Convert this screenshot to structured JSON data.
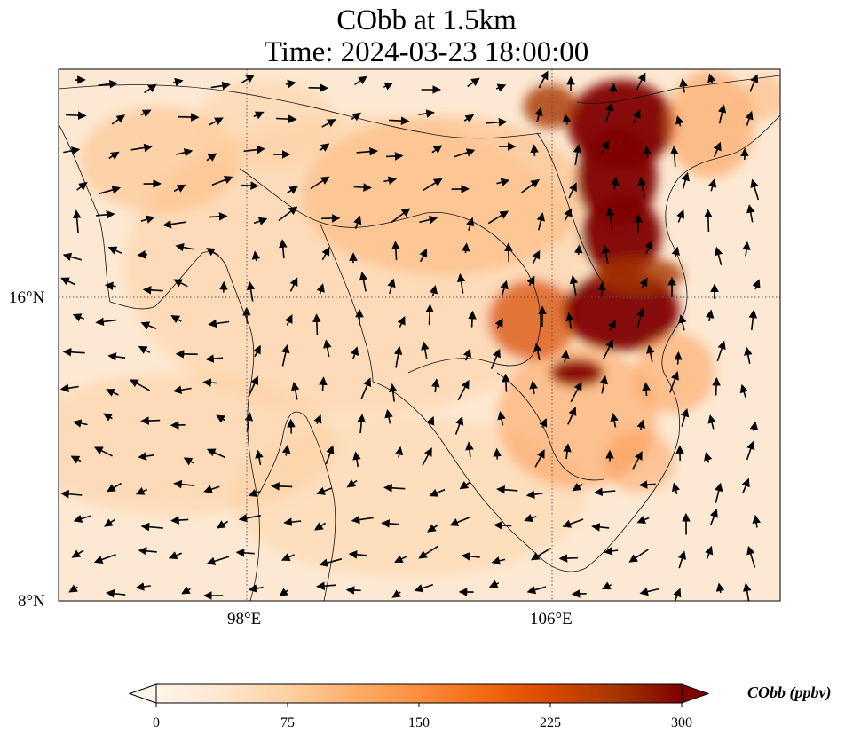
{
  "title": {
    "line1": "CObb at 1.5km",
    "line2": "Time: 2024-03-23 18:00:00"
  },
  "map": {
    "lon_ticks": [
      "98°E",
      "106°E"
    ],
    "lat_ticks": [
      "16°N",
      "8°N"
    ]
  },
  "colorbar": {
    "label": "CObb (ppbv)",
    "ticks": [
      "0",
      "75",
      "150",
      "225",
      "300"
    ],
    "min": 0,
    "max": 300,
    "extend": "both",
    "colormap": [
      "#fff5eb",
      "#fee6ce",
      "#fdd0a2",
      "#fdae6b",
      "#fd8d3c",
      "#f16913",
      "#d94801",
      "#a63603",
      "#7f0000"
    ]
  }
}
